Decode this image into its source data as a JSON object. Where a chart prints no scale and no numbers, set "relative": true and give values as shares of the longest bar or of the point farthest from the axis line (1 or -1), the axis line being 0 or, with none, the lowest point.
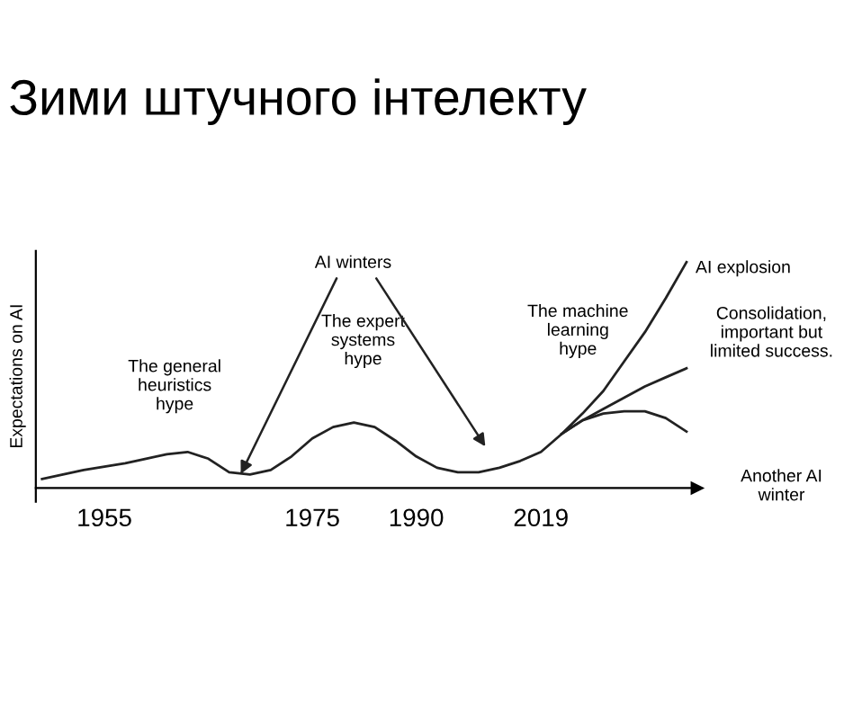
{
  "chart_data": {
    "type": "line",
    "title": "Зими штучного інтелекту",
    "ylabel": "Expectations on AI",
    "relative": true,
    "categories": [
      null,
      null,
      null,
      "1955",
      null,
      null,
      null,
      null,
      null,
      null,
      null,
      null,
      null,
      "1975",
      null,
      null,
      null,
      null,
      "1990",
      null,
      null,
      null,
      null,
      null,
      "2019",
      null,
      null,
      null,
      null,
      null,
      null,
      null
    ],
    "series": [
      {
        "color": "#222222",
        "values": [
          0.04,
          0.06,
          0.08,
          0.095,
          0.11,
          0.13,
          0.15,
          0.16,
          0.13,
          0.07,
          0.06,
          0.08,
          0.14,
          0.22,
          0.27,
          0.29,
          0.27,
          0.21,
          0.14,
          0.09,
          0.07,
          0.07,
          0.09,
          0.12,
          0.16,
          0.24,
          0.33,
          0.43,
          0.56,
          0.69,
          0.84,
          1.0
        ]
      },
      {
        "name": "Consolidation,\nimportant but\nlimited success.",
        "color": "#222222",
        "values": [
          null,
          null,
          null,
          null,
          null,
          null,
          null,
          null,
          null,
          null,
          null,
          null,
          null,
          null,
          null,
          null,
          null,
          null,
          null,
          null,
          null,
          null,
          null,
          null,
          null,
          0.24,
          0.3,
          0.35,
          0.4,
          0.45,
          0.49,
          0.53
        ]
      },
      {
        "name": "Another AI\nwinter",
        "color": "#222222",
        "values": [
          null,
          null,
          null,
          null,
          null,
          null,
          null,
          null,
          null,
          null,
          null,
          null,
          null,
          null,
          null,
          null,
          null,
          null,
          null,
          null,
          null,
          null,
          null,
          null,
          null,
          0.24,
          0.3,
          0.33,
          0.34,
          0.34,
          0.31,
          0.25
        ]
      }
    ],
    "annotations": [
      "AI explosion",
      "The general\nheuristics\nhype",
      "The expert\nsystems\nhype",
      "The machine\nlearning\nhype",
      "AI winters"
    ],
    "grid": false,
    "legend": false,
    "marker": "none",
    "line_style": "solid"
  }
}
